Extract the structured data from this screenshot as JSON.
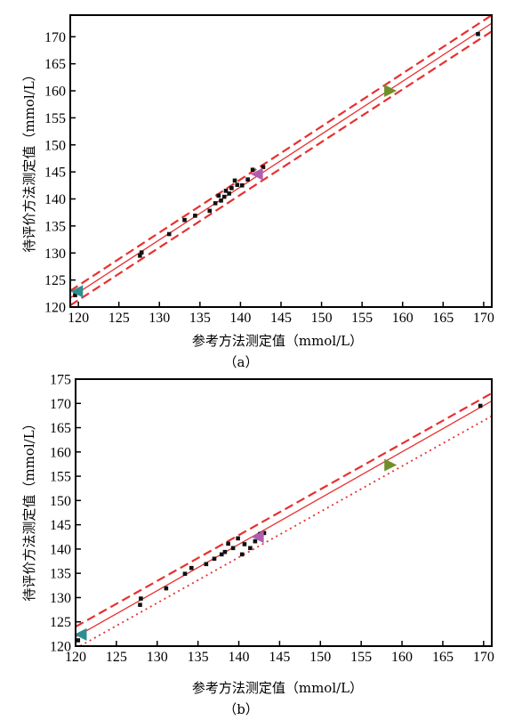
{
  "chart_data": [
    {
      "panel_label": "（a）",
      "type": "scatter",
      "xlabel": "参考方法测定值（mmol/L）",
      "ylabel": "待评价方法测定值（mmol/L）",
      "xlim": [
        119,
        171
      ],
      "ylim": [
        120,
        174
      ],
      "xticks": [
        120,
        125,
        130,
        135,
        140,
        145,
        150,
        155,
        160,
        165,
        170
      ],
      "yticks": [
        120,
        125,
        130,
        135,
        140,
        145,
        150,
        155,
        160,
        165,
        170
      ],
      "points": [
        [
          119.6,
          122.2
        ],
        [
          127.6,
          129.5
        ],
        [
          127.8,
          130.1
        ],
        [
          131.2,
          133.5
        ],
        [
          133.1,
          136.1
        ],
        [
          134.4,
          136.9
        ],
        [
          136.2,
          137.8
        ],
        [
          136.9,
          139.2
        ],
        [
          137.3,
          140.6
        ],
        [
          137.6,
          139.7
        ],
        [
          138.0,
          140.4
        ],
        [
          138.2,
          141.5
        ],
        [
          138.6,
          141.0
        ],
        [
          138.9,
          142.0
        ],
        [
          139.3,
          143.4
        ],
        [
          139.6,
          142.6
        ],
        [
          140.2,
          142.5
        ],
        [
          140.9,
          143.6
        ],
        [
          141.5,
          145.4
        ],
        [
          142.8,
          145.9
        ],
        [
          169.3,
          170.5
        ]
      ],
      "markers": [
        {
          "x": 119.8,
          "y": 122.9,
          "color": "#2f8f8f",
          "shape": "triangle-left"
        },
        {
          "x": 142.0,
          "y": 144.6,
          "color": "#b05fb0",
          "shape": "triangle-left"
        },
        {
          "x": 158.5,
          "y": 160.0,
          "color": "#6f8f2a",
          "shape": "triangle-right"
        }
      ],
      "lines": [
        {
          "style": "solid",
          "color": "#e83030",
          "x": [
            119,
            171
          ],
          "y": [
            121.7,
            172.5
          ]
        },
        {
          "style": "dashed",
          "color": "#e83030",
          "x": [
            119,
            171
          ],
          "y": [
            123.0,
            174.0
          ]
        },
        {
          "style": "dashed",
          "color": "#e83030",
          "x": [
            119,
            171
          ],
          "y": [
            120.3,
            171.0
          ]
        }
      ]
    },
    {
      "panel_label": "（b）",
      "type": "scatter",
      "xlabel": "参考方法测定值（mmol/L）",
      "ylabel": "待评价方法测定值（mmol/L）",
      "xlim": [
        120,
        171
      ],
      "ylim": [
        120,
        175
      ],
      "xticks": [
        120,
        125,
        130,
        135,
        140,
        145,
        150,
        155,
        160,
        165,
        170
      ],
      "yticks": [
        120,
        125,
        130,
        135,
        140,
        145,
        150,
        155,
        160,
        165,
        170,
        175
      ],
      "points": [
        [
          120.3,
          121.2
        ],
        [
          127.9,
          128.5
        ],
        [
          128.0,
          129.8
        ],
        [
          131.1,
          131.9
        ],
        [
          133.4,
          134.9
        ],
        [
          134.2,
          136.1
        ],
        [
          136.0,
          136.9
        ],
        [
          137.0,
          138.0
        ],
        [
          137.9,
          138.9
        ],
        [
          138.3,
          139.4
        ],
        [
          138.7,
          141.1
        ],
        [
          139.3,
          140.2
        ],
        [
          139.9,
          142.2
        ],
        [
          140.4,
          138.9
        ],
        [
          140.7,
          141.0
        ],
        [
          141.4,
          140.2
        ],
        [
          142.0,
          141.6
        ],
        [
          142.6,
          143.1
        ],
        [
          143.1,
          143.3
        ],
        [
          169.6,
          169.5
        ]
      ],
      "markers": [
        {
          "x": 120.6,
          "y": 122.4,
          "color": "#2f8f8f",
          "shape": "triangle-left"
        },
        {
          "x": 142.3,
          "y": 142.5,
          "color": "#b05fb0",
          "shape": "triangle-left"
        },
        {
          "x": 158.6,
          "y": 157.3,
          "color": "#6f8f2a",
          "shape": "triangle-right"
        }
      ],
      "lines": [
        {
          "style": "solid",
          "color": "#e83030",
          "x": [
            120,
            171
          ],
          "y": [
            121.9,
            170.5
          ]
        },
        {
          "style": "dashed",
          "color": "#e83030",
          "x": [
            120,
            171
          ],
          "y": [
            124.0,
            172.1
          ]
        },
        {
          "style": "dotted",
          "color": "#e83030",
          "x": [
            120,
            171
          ],
          "y": [
            119.5,
            167.4
          ]
        }
      ]
    }
  ]
}
